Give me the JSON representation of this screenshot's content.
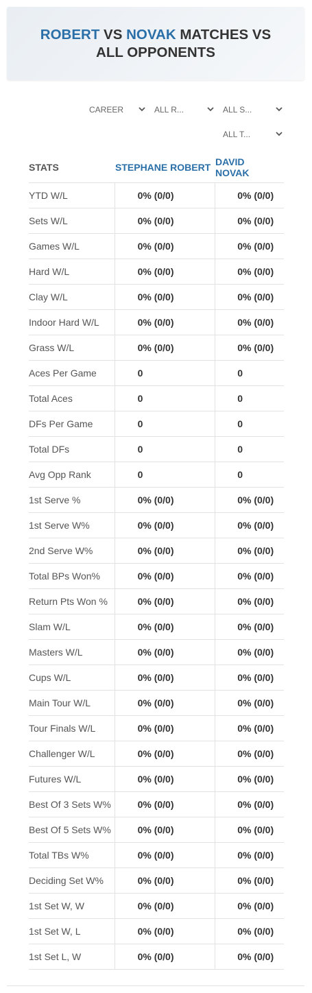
{
  "header": {
    "title_parts": [
      "ROBERT",
      "VS",
      "NOVAK",
      "MATCHES VS ALL OPPONENTS"
    ]
  },
  "filters": [
    "CAREER",
    "ALL R...",
    "ALL S...",
    "ALL T..."
  ],
  "table": {
    "columns": [
      "STATS",
      "STEPHANE ROBERT",
      "DAVID NOVAK"
    ],
    "rows": [
      [
        "YTD W/L",
        "0% (0/0)",
        "0% (0/0)"
      ],
      [
        "Sets W/L",
        "0% (0/0)",
        "0% (0/0)"
      ],
      [
        "Games W/L",
        "0% (0/0)",
        "0% (0/0)"
      ],
      [
        "Hard W/L",
        "0% (0/0)",
        "0% (0/0)"
      ],
      [
        "Clay W/L",
        "0% (0/0)",
        "0% (0/0)"
      ],
      [
        "Indoor Hard W/L",
        "0% (0/0)",
        "0% (0/0)"
      ],
      [
        "Grass W/L",
        "0% (0/0)",
        "0% (0/0)"
      ],
      [
        "Aces Per Game",
        0,
        0
      ],
      [
        "Total Aces",
        0,
        0
      ],
      [
        "DFs Per Game",
        0,
        0
      ],
      [
        "Total DFs",
        0,
        0
      ],
      [
        "Avg Opp Rank",
        0,
        0
      ],
      [
        "1st Serve %",
        "0% (0/0)",
        "0% (0/0)"
      ],
      [
        "1st Serve W%",
        "0% (0/0)",
        "0% (0/0)"
      ],
      [
        "2nd Serve W%",
        "0% (0/0)",
        "0% (0/0)"
      ],
      [
        "Total BPs Won%",
        "0% (0/0)",
        "0% (0/0)"
      ],
      [
        "Return Pts Won %",
        "0% (0/0)",
        "0% (0/0)"
      ],
      [
        "Slam W/L",
        "0% (0/0)",
        "0% (0/0)"
      ],
      [
        "Masters W/L",
        "0% (0/0)",
        "0% (0/0)"
      ],
      [
        "Cups W/L",
        "0% (0/0)",
        "0% (0/0)"
      ],
      [
        "Main Tour W/L",
        "0% (0/0)",
        "0% (0/0)"
      ],
      [
        "Tour Finals W/L",
        "0% (0/0)",
        "0% (0/0)"
      ],
      [
        "Challenger W/L",
        "0% (0/0)",
        "0% (0/0)"
      ],
      [
        "Futures W/L",
        "0% (0/0)",
        "0% (0/0)"
      ],
      [
        "Best Of 3 Sets W%",
        "0% (0/0)",
        "0% (0/0)"
      ],
      [
        "Best Of 5 Sets W%",
        "0% (0/0)",
        "0% (0/0)"
      ],
      [
        "Total TBs W%",
        "0% (0/0)",
        "0% (0/0)"
      ],
      [
        "Deciding Set W%",
        "0% (0/0)",
        "0% (0/0)"
      ],
      [
        "1st Set W, W",
        "0% (0/0)",
        "0% (0/0)"
      ],
      [
        "1st Set W, L",
        "0% (0/0)",
        "0% (0/0)"
      ],
      [
        "1st Set L, W",
        "0% (0/0)",
        "0% (0/0)"
      ]
    ]
  }
}
